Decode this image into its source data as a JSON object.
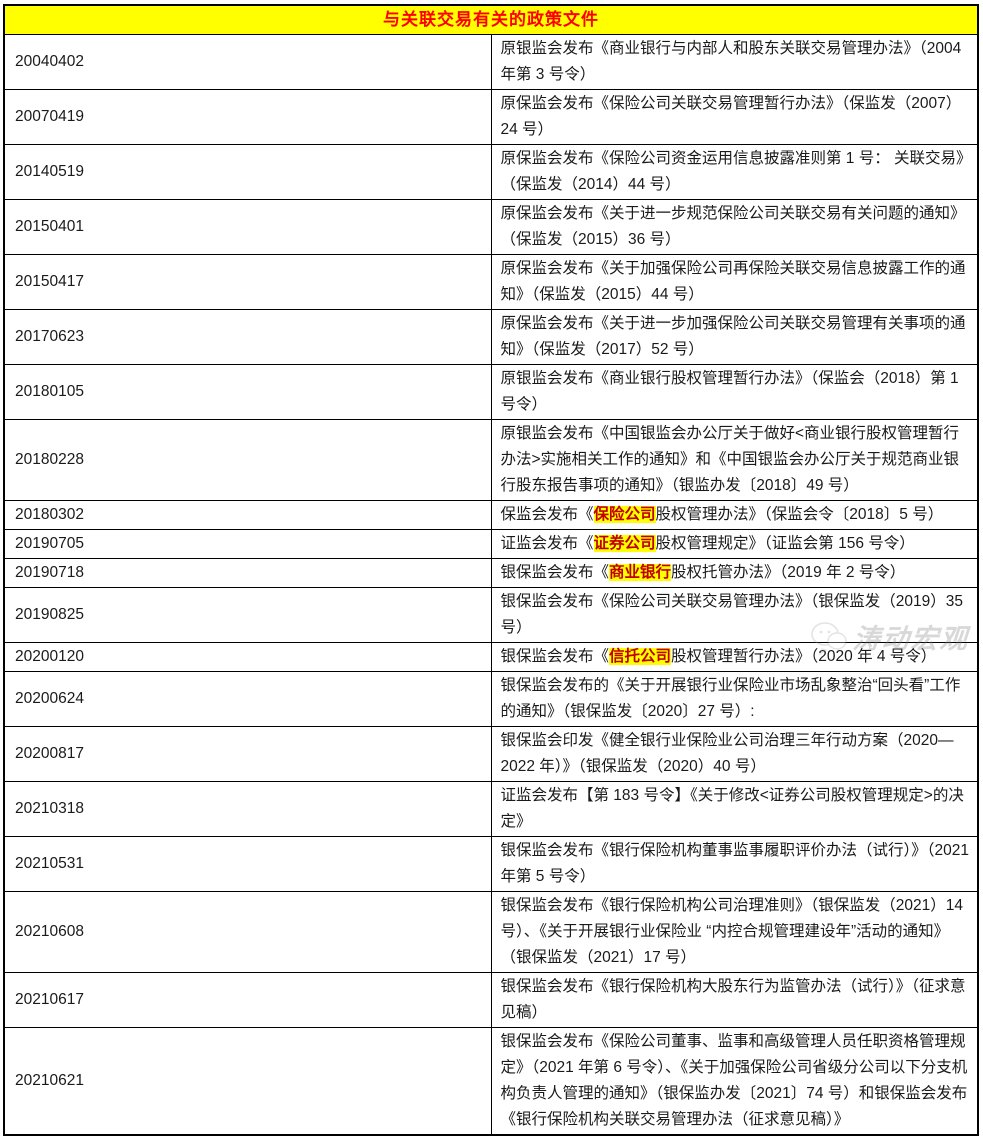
{
  "title": "与关联交易有关的政策文件",
  "colors": {
    "header_bg": "#FFFF00",
    "header_text": "#FF0000",
    "highlight_bg": "#FFFF00",
    "highlight_text": "#C00000",
    "border": "#000000"
  },
  "watermark": {
    "text": "涛动宏观",
    "icon": "wechat-logo"
  },
  "table": {
    "rows": [
      {
        "date": "20040402",
        "segments": [
          {
            "text": "原银监会发布《商业银行与内部人和股东关联交易管理办法》（2004 年第 3 号令）"
          }
        ]
      },
      {
        "date": "20070419",
        "segments": [
          {
            "text": "原保监会发布《保险公司关联交易管理暂行办法》（保监发（2007）24 号）"
          }
        ]
      },
      {
        "date": "20140519",
        "segments": [
          {
            "text": "原保监会发布《保险公司资金运用信息披露准则第 1 号： 关联交易》（保监发（2014）44 号）"
          }
        ]
      },
      {
        "date": "20150401",
        "segments": [
          {
            "text": "原保监会发布《关于进一步规范保险公司关联交易有关问题的通知》（保监发（2015）36 号）"
          }
        ]
      },
      {
        "date": "20150417",
        "segments": [
          {
            "text": "原保监会发布《关于加强保险公司再保险关联交易信息披露工作的通知》（保监发（2015）44 号）"
          }
        ]
      },
      {
        "date": "20170623",
        "segments": [
          {
            "text": "原保监会发布《关于进一步加强保险公司关联交易管理有关事项的通知》（保监发（2017）52 号）"
          }
        ]
      },
      {
        "date": "20180105",
        "segments": [
          {
            "text": "原银监会发布《商业银行股权管理暂行办法》（保监会（2018）第 1 号令）"
          }
        ]
      },
      {
        "date": "20180228",
        "segments": [
          {
            "text": "原银监会发布《中国银监会办公厅关于做好<商业银行股权管理暂行办法>实施相关工作的通知》和《中国银监会办公厅关于规范商业银行股东报告事项的通知》（银监办发〔2018〕49 号）"
          }
        ]
      },
      {
        "date": "20180302",
        "segments": [
          {
            "text": "保监会发布《"
          },
          {
            "text": "保险公司",
            "highlight": true
          },
          {
            "text": "股权管理办法》（保监会令〔2018〕5 号）"
          }
        ]
      },
      {
        "date": "20190705",
        "segments": [
          {
            "text": "证监会发布《"
          },
          {
            "text": "证券公司",
            "highlight": true
          },
          {
            "text": "股权管理规定》（证监会第 156 号令）"
          }
        ]
      },
      {
        "date": "20190718",
        "segments": [
          {
            "text": "银保监会发布《"
          },
          {
            "text": "商业银行",
            "highlight": true
          },
          {
            "text": "股权托管办法》（2019 年 2 号令）"
          }
        ]
      },
      {
        "date": "20190825",
        "segments": [
          {
            "text": "银保监会发布《保险公司关联交易管理办法》（银保监发（2019）35 号）"
          }
        ]
      },
      {
        "date": "20200120",
        "segments": [
          {
            "text": "银保监会发布《"
          },
          {
            "text": "信托公司",
            "highlight": true
          },
          {
            "text": "股权管理暂行办法》（2020 年 4 号令）"
          }
        ]
      },
      {
        "date": "20200624",
        "segments": [
          {
            "text": "银保监会发布的《关于开展银行业保险业市场乱象整治“回头看”工作的通知》（银保监发〔2020〕27 号）:"
          }
        ]
      },
      {
        "date": "20200817",
        "segments": [
          {
            "text": "银保监会印发《健全银行业保险业公司治理三年行动方案（2020—2022 年）》（银保监发（2020）40 号）"
          }
        ]
      },
      {
        "date": "20210318",
        "segments": [
          {
            "text": "证监会发布【第 183 号令】《关于修改<证券公司股权管理规定>的决定》"
          }
        ]
      },
      {
        "date": "20210531",
        "segments": [
          {
            "text": "银保监会发布《银行保险机构董事监事履职评价办法（试行）》（2021 年第 5 号令）"
          }
        ]
      },
      {
        "date": "20210608",
        "segments": [
          {
            "text": "银保监会发布《银行保险机构公司治理准则》（银保监发（2021）14 号）、《关于开展银行业保险业 “内控合规管理建设年”活动的通知》（银保监发（2021）17 号）"
          }
        ]
      },
      {
        "date": "20210617",
        "segments": [
          {
            "text": "银保监会发布《银行保险机构大股东行为监管办法（试行）》（征求意见稿）"
          }
        ]
      },
      {
        "date": "20210621",
        "segments": [
          {
            "text": "银保监会发布《保险公司董事、监事和高级管理人员任职资格管理规定》（2021 年第 6 号令）、《关于加强保险公司省级分公司以下分支机构负责人管理的通知》（银保监办发〔2021〕74 号）和银保监会发布《银行保险机构关联交易管理办法（征求意见稿）》"
          }
        ]
      }
    ]
  }
}
